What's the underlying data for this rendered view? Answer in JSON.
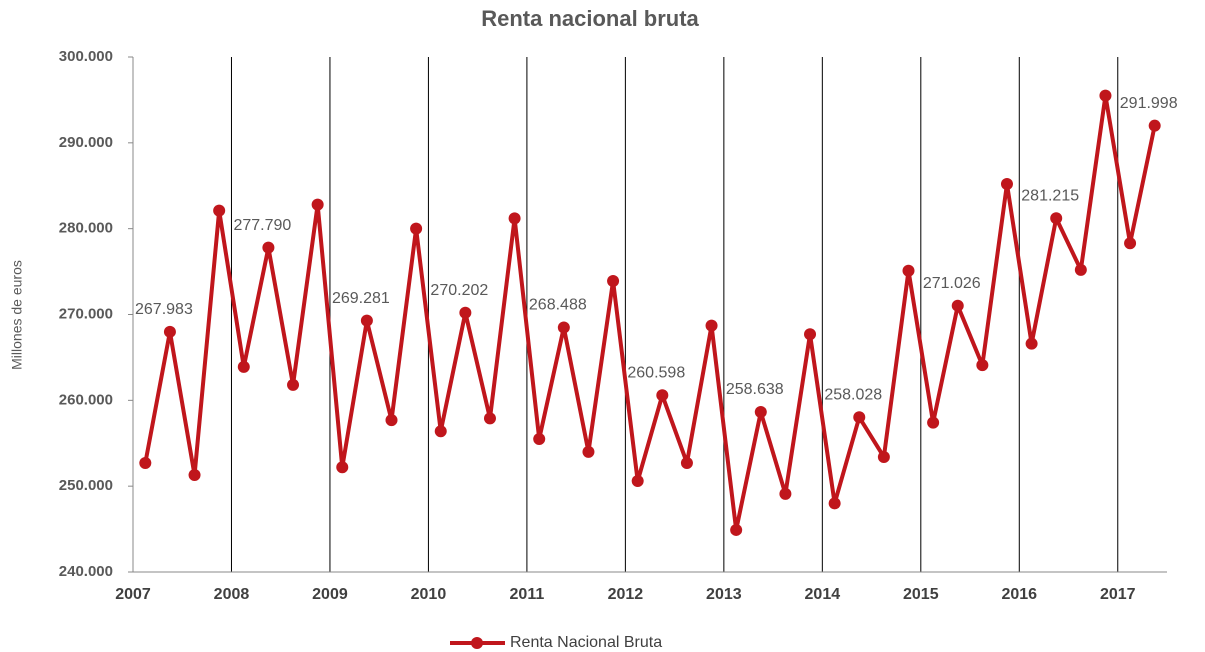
{
  "chart_data": {
    "type": "line",
    "title": "Renta nacional bruta",
    "y_label": "Millones de euros",
    "x": [
      2007.125,
      2007.375,
      2007.625,
      2007.875,
      2008.125,
      2008.375,
      2008.625,
      2008.875,
      2009.125,
      2009.375,
      2009.625,
      2009.875,
      2010.125,
      2010.375,
      2010.625,
      2010.875,
      2011.125,
      2011.375,
      2011.625,
      2011.875,
      2012.125,
      2012.375,
      2012.625,
      2012.875,
      2013.125,
      2013.375,
      2013.625,
      2013.875,
      2014.125,
      2014.375,
      2014.625,
      2014.875,
      2015.125,
      2015.375,
      2015.625,
      2015.875,
      2016.125,
      2016.375,
      2016.625,
      2016.875,
      2017.125,
      2017.375
    ],
    "series": [
      {
        "name": "Renta Nacional Bruta",
        "color": "#c0161c",
        "values": [
          252700,
          267983,
          251300,
          282100,
          263900,
          277790,
          261800,
          282800,
          252200,
          269281,
          257700,
          280000,
          256400,
          270202,
          257900,
          281200,
          255500,
          268488,
          254000,
          273900,
          250600,
          260598,
          252700,
          268700,
          244900,
          258638,
          249100,
          267700,
          248000,
          258028,
          253400,
          275100,
          257400,
          271026,
          264100,
          285200,
          266600,
          281215,
          275200,
          295500,
          278300,
          291998
        ],
        "value_labels": [
          null,
          "267.983",
          null,
          null,
          null,
          "277.790",
          null,
          null,
          null,
          "269.281",
          null,
          null,
          null,
          "270.202",
          null,
          null,
          null,
          "268.488",
          null,
          null,
          null,
          "260.598",
          null,
          null,
          null,
          "258.638",
          null,
          null,
          null,
          "258.028",
          null,
          null,
          null,
          "271.026",
          null,
          null,
          null,
          "281.215",
          null,
          null,
          null,
          "291.998"
        ]
      }
    ],
    "xlim": [
      2007,
      2017.5
    ],
    "xticks": [
      2007,
      2008,
      2009,
      2010,
      2011,
      2012,
      2013,
      2014,
      2015,
      2016,
      2017
    ],
    "ylim": [
      240000,
      300000
    ],
    "yticks": [
      {
        "value": 240000,
        "label": "240.000"
      },
      {
        "value": 250000,
        "label": "250.000"
      },
      {
        "value": 260000,
        "label": "260.000"
      },
      {
        "value": 270000,
        "label": "270.000"
      },
      {
        "value": 280000,
        "label": "280.000"
      },
      {
        "value": 290000,
        "label": "290.000"
      },
      {
        "value": 300000,
        "label": "300.000"
      }
    ],
    "x_grid": true,
    "legend": "bottom"
  }
}
